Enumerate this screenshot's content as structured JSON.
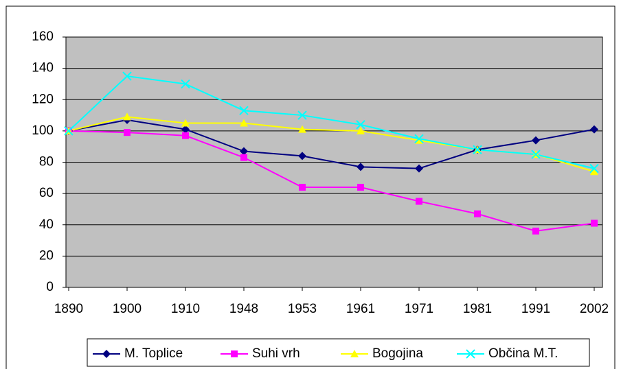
{
  "chart_data": {
    "type": "line",
    "categories": [
      "1890",
      "1900",
      "1910",
      "1948",
      "1953",
      "1961",
      "1971",
      "1981",
      "1991",
      "2002"
    ],
    "series": [
      {
        "name": "M. Toplice",
        "color": "#000080",
        "marker": "diamond",
        "values": [
          100,
          107,
          101,
          87,
          84,
          77,
          76,
          88,
          94,
          101
        ]
      },
      {
        "name": "Suhi vrh",
        "color": "#FF00FF",
        "marker": "square",
        "values": [
          100,
          99,
          97,
          83,
          64,
          64,
          55,
          47,
          36,
          41
        ]
      },
      {
        "name": "Bogojina",
        "color": "#FFFF00",
        "marker": "triangle",
        "values": [
          100,
          109,
          105,
          105,
          101,
          100,
          94,
          88,
          85,
          74
        ]
      },
      {
        "name": "Občina M.T.",
        "color": "#00FFFF",
        "marker": "x",
        "values": [
          100,
          135,
          130,
          113,
          110,
          104,
          95,
          88,
          85,
          76
        ]
      }
    ],
    "ylim": [
      0,
      160
    ],
    "yticks": [
      0,
      20,
      40,
      60,
      80,
      100,
      120,
      140,
      160
    ],
    "grid": true
  }
}
